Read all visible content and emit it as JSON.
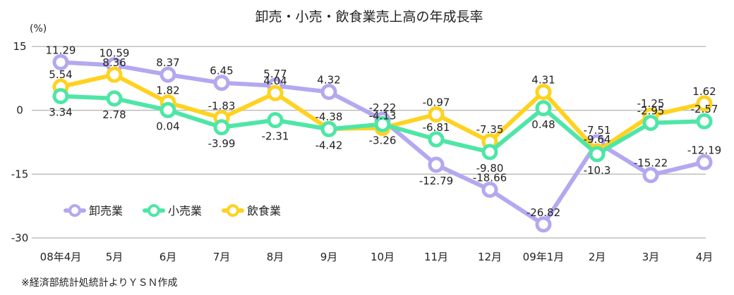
{
  "chart_data": {
    "type": "line",
    "title": "卸売・小売・飲食業売上高の年成長率",
    "unit_label": "(%)",
    "ylim": [
      -30,
      15
    ],
    "yticks": [
      15,
      0,
      -15,
      -30
    ],
    "grid": true,
    "legend_position": "bottom-left",
    "categories": [
      "08年4月",
      "5月",
      "6月",
      "7月",
      "8月",
      "9月",
      "10月",
      "11月",
      "12月",
      "09年1月",
      "2月",
      "3月",
      "4月"
    ],
    "series": [
      {
        "name": "卸売業",
        "color": "#b4a8f0",
        "values": [
          11.29,
          10.59,
          8.37,
          6.45,
          5.77,
          4.32,
          -2.22,
          -12.79,
          -18.66,
          -26.82,
          -7.51,
          -15.22,
          -12.19
        ],
        "labels": [
          "11.29",
          "10.59",
          "8.37",
          "6.45",
          "5.77",
          "4.32",
          "-2.22",
          "-12.79",
          "-18.66",
          "-26.82",
          "-7.51",
          "-15.22",
          "-12.19"
        ],
        "label_pos": [
          "above",
          "above",
          "above",
          "above",
          "above",
          "above",
          "above",
          "below",
          "above",
          "above",
          "above",
          "above",
          "above"
        ]
      },
      {
        "name": "小売業",
        "color": "#4ee6a6",
        "values": [
          3.34,
          2.78,
          0.04,
          -3.99,
          -2.31,
          -4.42,
          -3.26,
          -6.81,
          -9.8,
          0.48,
          -10.3,
          -2.95,
          -2.57
        ],
        "labels": [
          "3.34",
          "2.78",
          "0.04",
          "-3.99",
          "-2.31",
          "-4.42",
          "-3.26",
          "-6.81",
          "-9.80",
          "0.48",
          "-10.3",
          "-2.95",
          "-2.57"
        ],
        "label_pos": [
          "below",
          "below",
          "below",
          "below",
          "below",
          "below",
          "below",
          "above",
          "below",
          "below",
          "below",
          "above",
          "above"
        ]
      },
      {
        "name": "飲食業",
        "color": "#ffd21f",
        "values": [
          5.54,
          8.36,
          1.82,
          -1.83,
          4.04,
          -4.38,
          -4.13,
          -0.97,
          -7.35,
          4.31,
          -9.64,
          -1.25,
          1.62
        ],
        "labels": [
          "5.54",
          "8.36",
          "1.82",
          "-1.83",
          "4.04",
          "-4.38",
          "-4.13",
          "-0.97",
          "-7.35",
          "4.31",
          "-9.64",
          "-1.25",
          "1.62"
        ],
        "label_pos": [
          "above",
          "above",
          "above",
          "above",
          "above",
          "above",
          "above",
          "above",
          "above",
          "above",
          "above",
          "above",
          "above"
        ]
      }
    ]
  },
  "footnote": "※経済部統計処統計よりＹＳＮ作成"
}
